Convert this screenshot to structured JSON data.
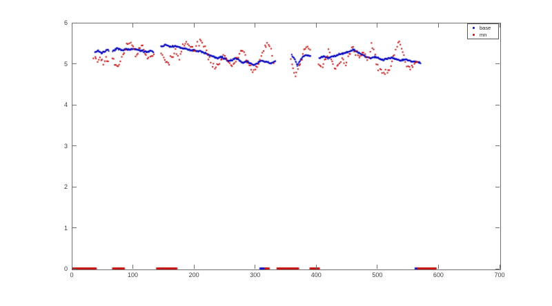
{
  "figure": {
    "background": "#ffffff",
    "axis_color": "#6e6e6e",
    "tick_label_color": "#3d3d3d"
  },
  "legend": {
    "position": "upper-right",
    "entries": [
      {
        "label": "base",
        "color": "#0000bf"
      },
      {
        "label": "mn",
        "color": "#c00000"
      }
    ]
  },
  "chart_data": {
    "type": "scatter",
    "title": "",
    "xlabel": "",
    "ylabel": "",
    "xlim": [
      0,
      700
    ],
    "ylim": [
      0,
      6
    ],
    "xticks": [
      0,
      100,
      200,
      300,
      400,
      500,
      600,
      700
    ],
    "yticks": [
      0,
      1,
      2,
      3,
      4,
      5,
      6
    ],
    "grid": false,
    "legend_position": "upper-right",
    "marker": "point",
    "seed": 7,
    "series": [
      {
        "name": "base",
        "color": "#0000bf",
        "point_step": 0.9,
        "jitter": 0.018,
        "x_jitter": 0.0,
        "trend_segments": [
          [
            [
              38,
              5.28
            ],
            [
              43,
              5.33
            ],
            [
              48,
              5.26
            ],
            [
              53,
              5.3
            ],
            [
              58,
              5.33
            ],
            [
              61,
              5.31
            ]
          ],
          [
            [
              67,
              5.3
            ],
            [
              74,
              5.37
            ],
            [
              81,
              5.33
            ],
            [
              88,
              5.36
            ],
            [
              95,
              5.34
            ],
            [
              102,
              5.36
            ],
            [
              109,
              5.33
            ],
            [
              116,
              5.31
            ],
            [
              123,
              5.29
            ],
            [
              129,
              5.32
            ],
            [
              134,
              5.3
            ]
          ],
          [
            [
              146,
              5.42
            ],
            [
              154,
              5.46
            ],
            [
              161,
              5.41
            ],
            [
              169,
              5.43
            ],
            [
              177,
              5.39
            ],
            [
              185,
              5.37
            ],
            [
              193,
              5.34
            ],
            [
              201,
              5.32
            ],
            [
              209,
              5.3
            ],
            [
              217,
              5.26
            ],
            [
              225,
              5.22
            ],
            [
              233,
              5.17
            ],
            [
              239,
              5.13
            ],
            [
              245,
              5.17
            ],
            [
              251,
              5.11
            ],
            [
              257,
              5.06
            ],
            [
              263,
              5.1
            ],
            [
              269,
              5.14
            ],
            [
              275,
              5.08
            ],
            [
              281,
              5.02
            ],
            [
              287,
              5.06
            ],
            [
              293,
              5.0
            ],
            [
              299,
              4.97
            ],
            [
              305,
              5.03
            ],
            [
              311,
              5.07
            ],
            [
              318,
              5.04
            ],
            [
              326,
              5.02
            ],
            [
              334,
              5.05
            ]
          ],
          [
            [
              360,
              5.22
            ],
            [
              365,
              5.1
            ],
            [
              369,
              4.96
            ],
            [
              373,
              5.06
            ],
            [
              378,
              5.17
            ],
            [
              384,
              5.21
            ],
            [
              391,
              5.19
            ]
          ],
          [
            [
              405,
              5.14
            ],
            [
              412,
              5.19
            ],
            [
              419,
              5.13
            ],
            [
              426,
              5.17
            ],
            [
              433,
              5.21
            ],
            [
              440,
              5.24
            ],
            [
              447,
              5.27
            ],
            [
              454,
              5.3
            ],
            [
              461,
              5.34
            ],
            [
              468,
              5.28
            ],
            [
              475,
              5.22
            ],
            [
              482,
              5.17
            ],
            [
              489,
              5.14
            ],
            [
              496,
              5.17
            ],
            [
              503,
              5.13
            ],
            [
              510,
              5.1
            ],
            [
              517,
              5.13
            ],
            [
              524,
              5.15
            ],
            [
              531,
              5.11
            ],
            [
              538,
              5.07
            ],
            [
              545,
              5.11
            ],
            [
              552,
              5.08
            ],
            [
              558,
              5.04
            ],
            [
              564,
              5.06
            ],
            [
              571,
              5.02
            ]
          ]
        ],
        "zero_segments": [
          [
            308,
            316
          ],
          [
            562,
            566
          ]
        ]
      },
      {
        "name": "mn",
        "color": "#c00000",
        "point_step": 2.0,
        "jitter": 0.07,
        "x_jitter": 0.7,
        "trend_segments": [
          [
            [
              36,
              5.15
            ],
            [
              42,
              5.1
            ],
            [
              47,
              5.18
            ],
            [
              52,
              5.05
            ],
            [
              57,
              5.12
            ],
            [
              61,
              5.08
            ]
          ],
          [
            [
              66,
              5.18
            ],
            [
              70,
              5.02
            ],
            [
              75,
              4.98
            ],
            [
              80,
              5.08
            ],
            [
              85,
              5.22
            ],
            [
              90,
              5.45
            ],
            [
              95,
              5.52
            ],
            [
              100,
              5.38
            ],
            [
              105,
              5.22
            ],
            [
              110,
              5.3
            ],
            [
              115,
              5.42
            ],
            [
              120,
              5.28
            ],
            [
              125,
              5.16
            ],
            [
              130,
              5.24
            ],
            [
              134,
              5.18
            ]
          ],
          [
            [
              146,
              5.25
            ],
            [
              152,
              5.12
            ],
            [
              158,
              5.02
            ],
            [
              164,
              5.15
            ],
            [
              170,
              5.28
            ],
            [
              176,
              5.18
            ],
            [
              182,
              5.38
            ],
            [
              188,
              5.52
            ],
            [
              194,
              5.42
            ],
            [
              200,
              5.3
            ],
            [
              206,
              5.5
            ],
            [
              212,
              5.55
            ],
            [
              218,
              5.4
            ],
            [
              224,
              5.18
            ],
            [
              230,
              5.0
            ],
            [
              236,
              4.92
            ],
            [
              242,
              5.05
            ],
            [
              248,
              5.2
            ],
            [
              254,
              5.1
            ],
            [
              260,
              4.95
            ],
            [
              266,
              5.05
            ],
            [
              272,
              5.22
            ],
            [
              278,
              5.35
            ],
            [
              284,
              5.18
            ],
            [
              290,
              4.95
            ],
            [
              296,
              4.78
            ],
            [
              302,
              4.88
            ],
            [
              308,
              5.1
            ],
            [
              314,
              5.35
            ],
            [
              320,
              5.48
            ],
            [
              326,
              5.3
            ],
            [
              330,
              5.05
            ]
          ],
          [
            [
              358,
              5.1
            ],
            [
              362,
              4.9
            ],
            [
              366,
              4.72
            ],
            [
              370,
              4.8
            ],
            [
              374,
              5.0
            ],
            [
              378,
              5.2
            ],
            [
              382,
              5.38
            ],
            [
              386,
              5.46
            ],
            [
              390,
              5.3
            ]
          ],
          [
            [
              404,
              5.05
            ],
            [
              408,
              4.92
            ],
            [
              412,
              5.0
            ],
            [
              416,
              5.15
            ],
            [
              420,
              5.3
            ],
            [
              424,
              5.12
            ],
            [
              428,
              4.95
            ],
            [
              432,
              4.85
            ],
            [
              436,
              5.0
            ],
            [
              440,
              5.12
            ],
            [
              444,
              5.05
            ],
            [
              448,
              4.95
            ],
            [
              452,
              5.1
            ],
            [
              456,
              5.25
            ],
            [
              460,
              5.4
            ],
            [
              464,
              5.3
            ],
            [
              468,
              5.15
            ],
            [
              472,
              5.2
            ],
            [
              476,
              5.28
            ],
            [
              480,
              5.22
            ],
            [
              484,
              5.12
            ],
            [
              488,
              5.35
            ],
            [
              491,
              5.48
            ],
            [
              494,
              5.3
            ],
            [
              497,
              5.12
            ],
            [
              500,
              4.98
            ],
            [
              504,
              4.88
            ],
            [
              508,
              4.8
            ],
            [
              512,
              4.78
            ],
            [
              516,
              4.82
            ],
            [
              520,
              4.92
            ],
            [
              524,
              5.08
            ],
            [
              528,
              5.28
            ],
            [
              532,
              5.45
            ],
            [
              536,
              5.52
            ],
            [
              540,
              5.4
            ],
            [
              544,
              5.2
            ],
            [
              548,
              5.0
            ],
            [
              552,
              4.88
            ],
            [
              556,
              4.92
            ],
            [
              560,
              5.0
            ],
            [
              564,
              5.05
            ],
            [
              567,
              5.02
            ]
          ]
        ],
        "zero_segments": [
          [
            0,
            40
          ],
          [
            67,
            86
          ],
          [
            139,
            172
          ],
          [
            316,
            323
          ],
          [
            336,
            371
          ],
          [
            390,
            405
          ],
          [
            566,
            596
          ]
        ]
      }
    ]
  }
}
